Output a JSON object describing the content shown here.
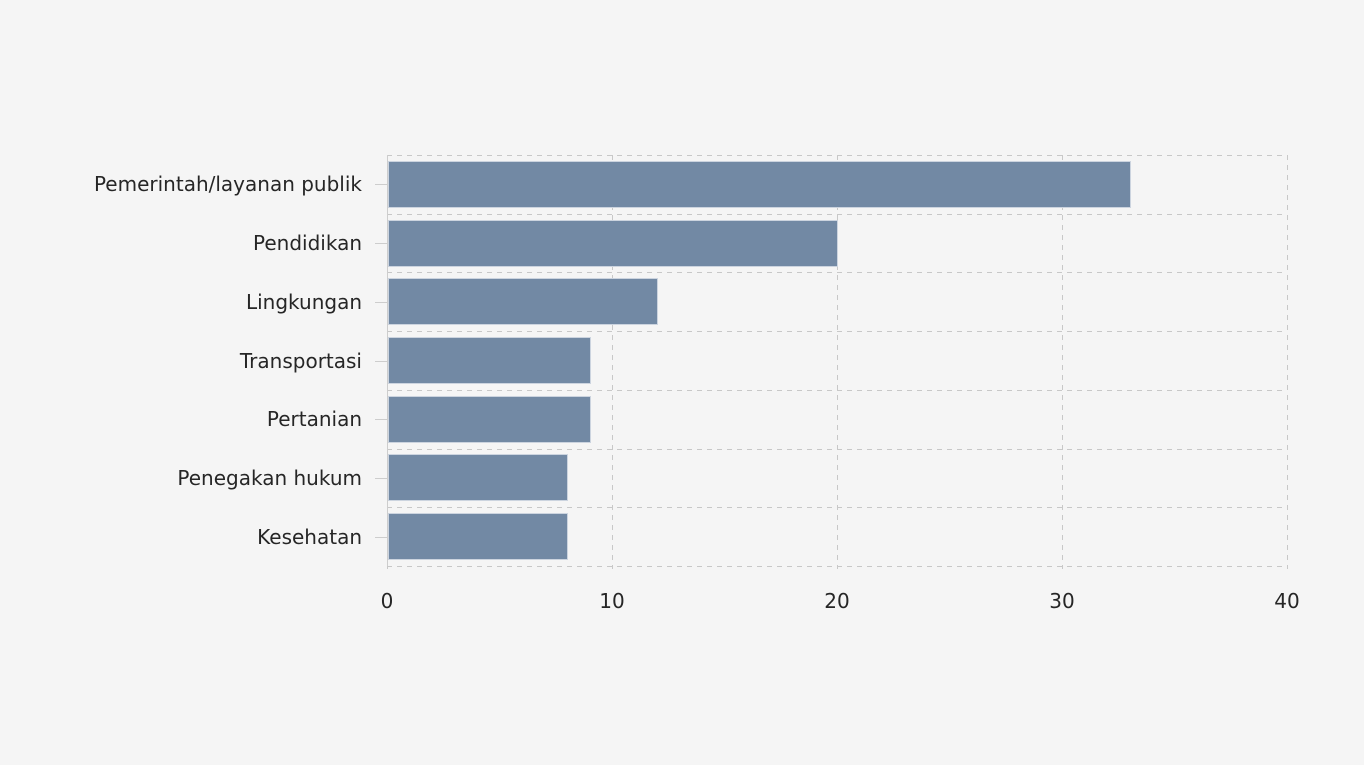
{
  "figure": {
    "background_color": "#f5f5f5",
    "text_color": "#262626",
    "grid_color": "#c8c8c8",
    "axis_color": "#cdcdcd"
  },
  "chart_data": {
    "type": "bar",
    "orientation": "horizontal",
    "title": "",
    "xlabel": "",
    "ylabel": "",
    "categories": [
      "Pemerintah/layanan publik",
      "Pendidikan",
      "Lingkungan",
      "Transportasi",
      "Pertanian",
      "Penegakan hukum",
      "Kesehatan"
    ],
    "values": [
      33,
      20,
      12,
      9,
      9,
      8,
      8
    ],
    "xlim": [
      0,
      40
    ],
    "x_ticks": [
      "0",
      "10",
      "20",
      "30",
      "40"
    ],
    "x_tick_values": [
      0,
      10,
      20,
      30,
      40
    ],
    "grid": "dashed",
    "legend_position": "none",
    "bar_color": "#7289a4"
  }
}
